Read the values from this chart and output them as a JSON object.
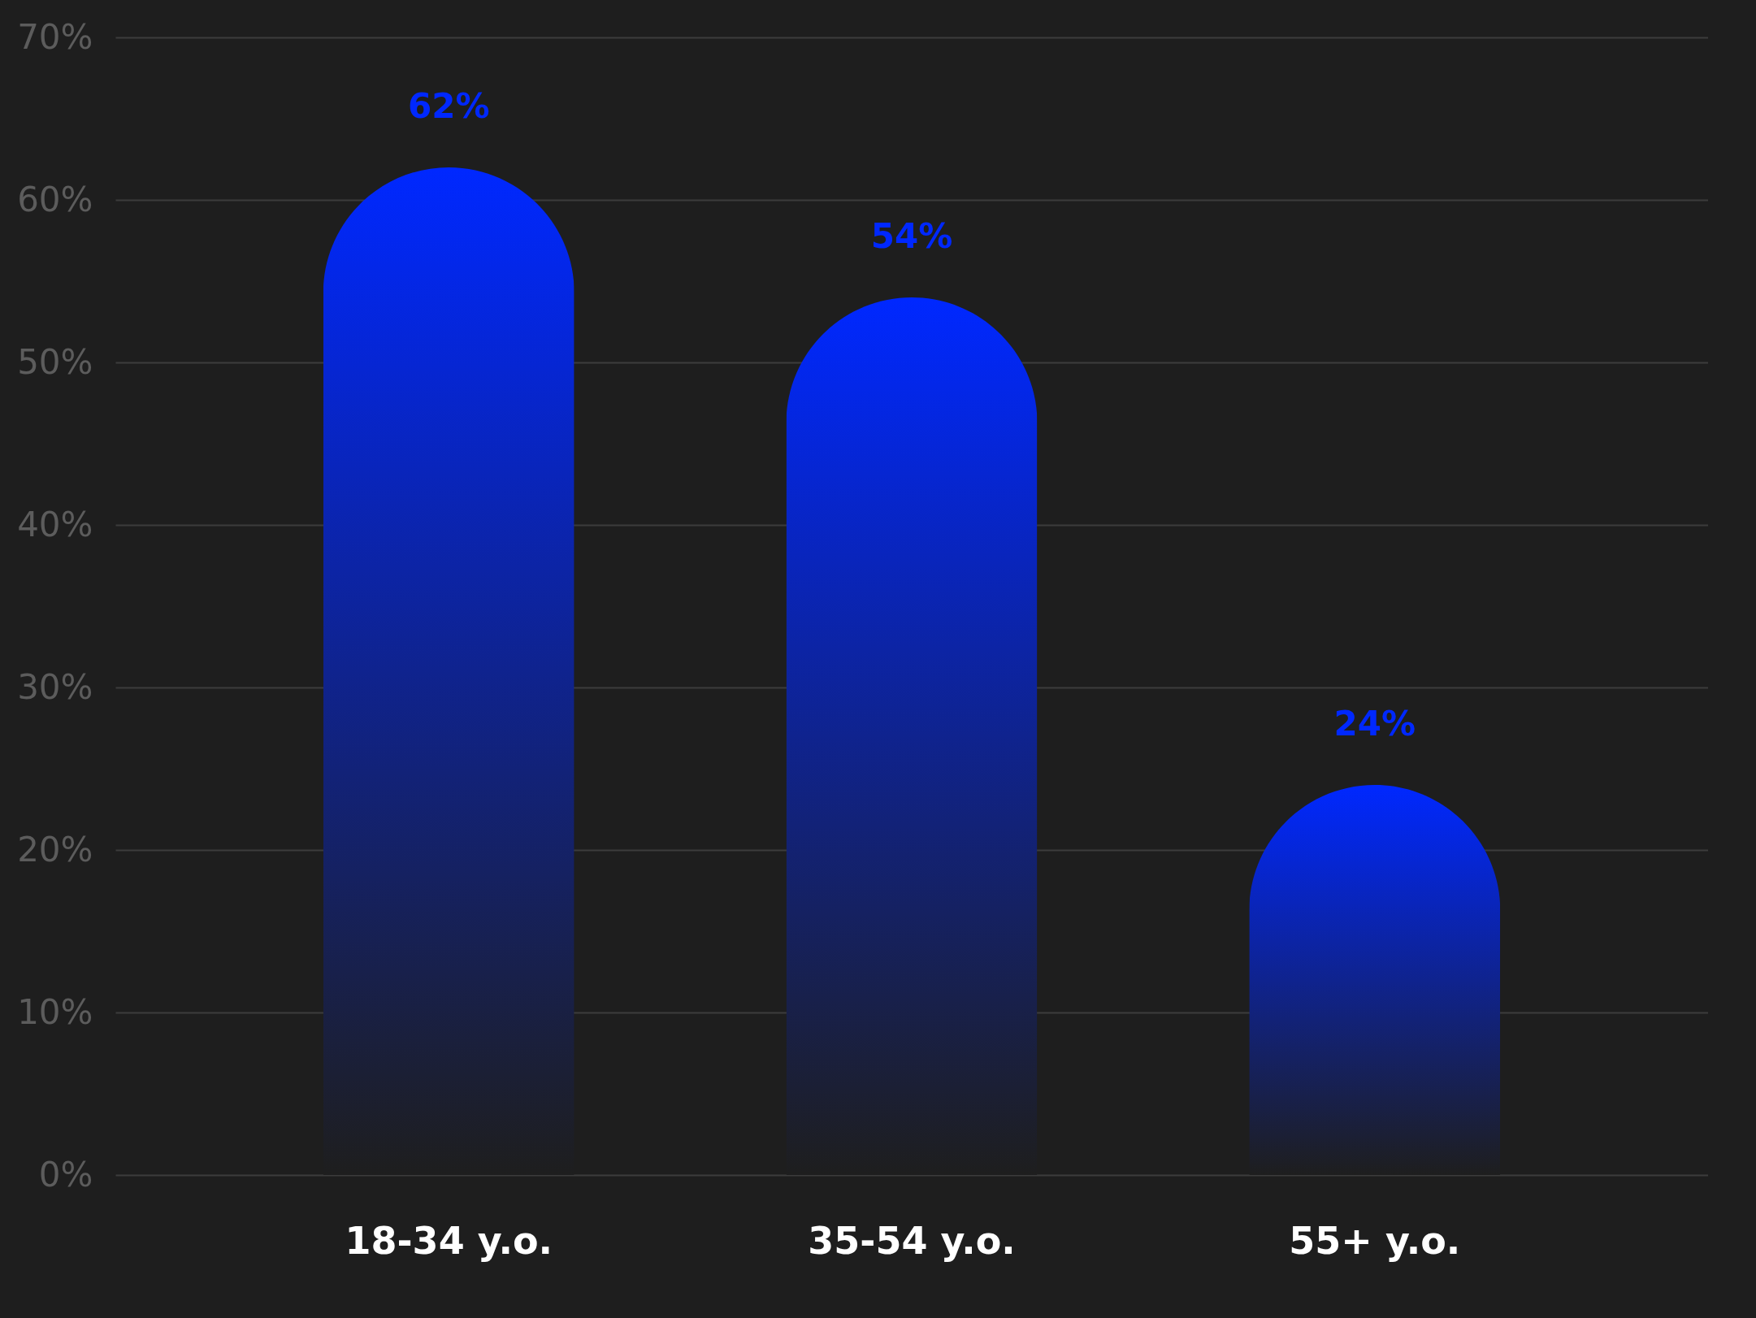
{
  "chart_data": {
    "type": "bar",
    "categories": [
      "18-34 y.o.",
      "35-54 y.o.",
      "55+ y.o."
    ],
    "values": [
      62,
      54,
      24
    ],
    "value_labels": [
      "62%",
      "54%",
      "24%"
    ],
    "color": "#0028ff",
    "ylim": [
      0,
      70
    ],
    "yticks": [
      {
        "value": 0,
        "label": "0%"
      },
      {
        "value": 10,
        "label": "10%"
      },
      {
        "value": 20,
        "label": "20%"
      },
      {
        "value": 30,
        "label": "30%"
      },
      {
        "value": 40,
        "label": "40%"
      },
      {
        "value": 50,
        "label": "50%"
      },
      {
        "value": 60,
        "label": "60%"
      },
      {
        "value": 70,
        "label": "70%"
      }
    ],
    "grid": "y"
  }
}
